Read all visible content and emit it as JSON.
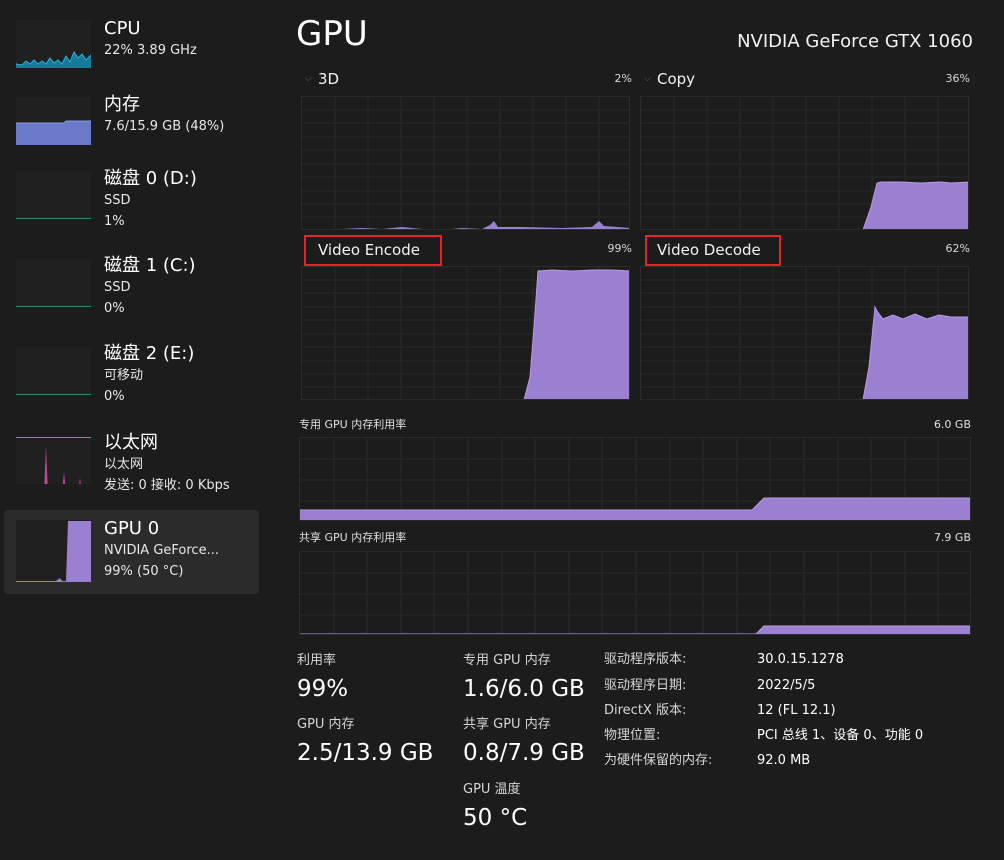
{
  "sidebar": {
    "items": [
      {
        "title": "CPU",
        "lines": [
          "22% 3.89 GHz"
        ]
      },
      {
        "title": "内存",
        "lines": [
          "7.6/15.9 GB (48%)"
        ]
      },
      {
        "title": "磁盘 0 (D:)",
        "lines": [
          "SSD",
          "1%"
        ]
      },
      {
        "title": "磁盘 1 (C:)",
        "lines": [
          "SSD",
          "0%"
        ]
      },
      {
        "title": "磁盘 2 (E:)",
        "lines": [
          "可移动",
          "0%"
        ]
      },
      {
        "title": "以太网",
        "lines": [
          "以太网",
          "发送: 0 接收: 0 Kbps"
        ]
      },
      {
        "title": "GPU 0",
        "lines": [
          "NVIDIA GeForce...",
          "99% (50 °C)"
        ]
      }
    ]
  },
  "header": {
    "title": "GPU",
    "device": "NVIDIA GeForce GTX 1060"
  },
  "engines": [
    {
      "name": "3D",
      "percent": "2%"
    },
    {
      "name": "Copy",
      "percent": "36%"
    },
    {
      "name": "Video Encode",
      "percent": "99%"
    },
    {
      "name": "Video Decode",
      "percent": "62%"
    }
  ],
  "memory_graphs": [
    {
      "label": "专用 GPU 内存利用率",
      "max": "6.0 GB"
    },
    {
      "label": "共享 GPU 内存利用率",
      "max": "7.9 GB"
    }
  ],
  "stats": {
    "utilization_label": "利用率",
    "utilization_value": "99%",
    "gpu_memory_label": "GPU 内存",
    "gpu_memory_value": "2.5/13.9 GB",
    "dedicated_label": "专用 GPU 内存",
    "dedicated_value": "1.6/6.0 GB",
    "shared_label": "共享 GPU 内存",
    "shared_value": "0.8/7.9 GB",
    "temp_label": "GPU 温度",
    "temp_value": "50 °C"
  },
  "info": [
    {
      "key": "驱动程序版本:",
      "value": "30.0.15.1278"
    },
    {
      "key": "驱动程序日期:",
      "value": "2022/5/5"
    },
    {
      "key": "DirectX 版本:",
      "value": "12 (FL 12.1)"
    },
    {
      "key": "物理位置:",
      "value": "PCI 总线 1、设备 0、功能 0"
    },
    {
      "key": "为硬件保留的内存:",
      "value": "92.0 MB"
    }
  ],
  "colors": {
    "gpu_fill": "#9b7fd0",
    "gpu_line": "#a98ae0",
    "cpu_fill": "#177a99",
    "cpu_line": "#28b4dc",
    "mem_fill": "#6a7ac8",
    "net_line": "#d060a8",
    "highlight": "#e0262b"
  }
}
